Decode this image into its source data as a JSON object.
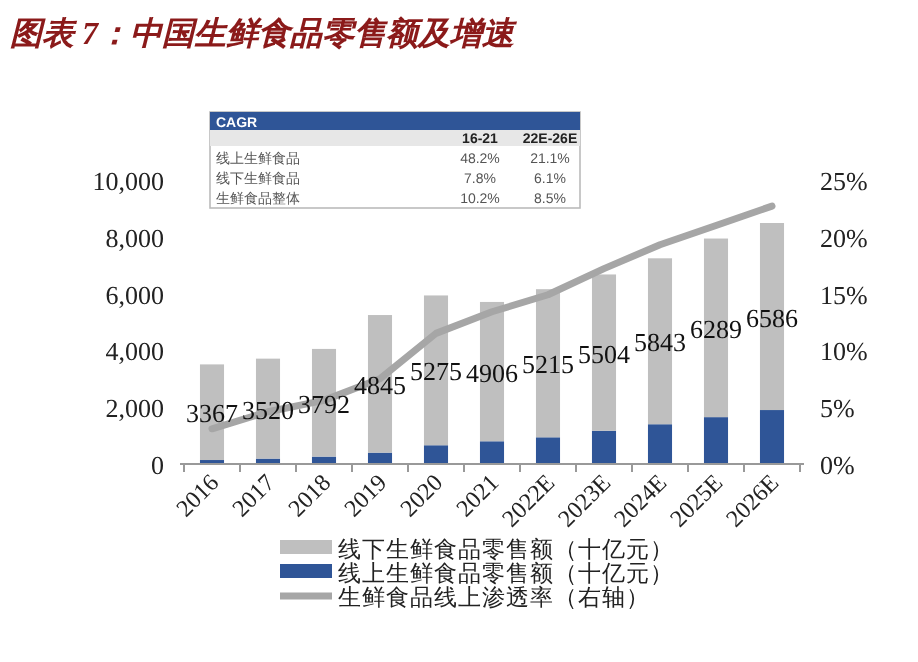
{
  "chart_data": {
    "type": "bar",
    "title": "图表 7：中国生鲜食品零售额及增速",
    "stacked": true,
    "legend": "bottom",
    "grid": false,
    "categories": [
      "2016",
      "2017",
      "2018",
      "2019",
      "2020",
      "2021",
      "2022E",
      "2023E",
      "2024E",
      "2025E",
      "2026E"
    ],
    "series": [
      {
        "name": "线上生鲜食品零售额（十亿元）",
        "color": "#2f5597",
        "values": [
          140,
          190,
          260,
          400,
          660,
          800,
          940,
          1170,
          1400,
          1650,
          1900
        ]
      },
      {
        "name": "线下生鲜食品零售额（十亿元）",
        "color": "#bfbfbf",
        "values": [
          3367,
          3520,
          3792,
          4845,
          5275,
          4906,
          5215,
          5504,
          5843,
          6289,
          6586
        ],
        "value_labels": [
          "3367",
          "3520",
          "3792",
          "4845",
          "5275",
          "4906",
          "5215",
          "5504",
          "5843",
          "6289",
          "6586"
        ]
      },
      {
        "name": "生鲜食品线上渗透率（右轴）",
        "type": "line",
        "axis": "y2",
        "color": "#a6a6a6",
        "values": [
          3.1,
          4.6,
          5.6,
          7.5,
          11.5,
          13.4,
          14.9,
          17.2,
          19.3,
          21.0,
          22.7
        ]
      }
    ],
    "ylim": [
      0,
      10000
    ],
    "yticks": [
      {
        "value": 0,
        "label": "0"
      },
      {
        "value": 2000,
        "label": "2,000"
      },
      {
        "value": 4000,
        "label": "4,000"
      },
      {
        "value": 6000,
        "label": "6,000"
      },
      {
        "value": 8000,
        "label": "8,000"
      },
      {
        "value": 10000,
        "label": "10,000"
      }
    ],
    "y2lim": [
      0,
      25
    ],
    "y2ticks": [
      {
        "value": 0,
        "label": "0%"
      },
      {
        "value": 5,
        "label": "5%"
      },
      {
        "value": 10,
        "label": "10%"
      },
      {
        "value": 15,
        "label": "15%"
      },
      {
        "value": 20,
        "label": "20%"
      },
      {
        "value": 25,
        "label": "25%"
      }
    ],
    "annotations": [
      "CAGR",
      "16-21",
      "22E-26E",
      "线上生鲜食品",
      "48.2%",
      "21.1%",
      "线下生鲜食品",
      "7.8%",
      "6.1%",
      "生鲜食品整体",
      "10.2%",
      "8.5%"
    ]
  }
}
